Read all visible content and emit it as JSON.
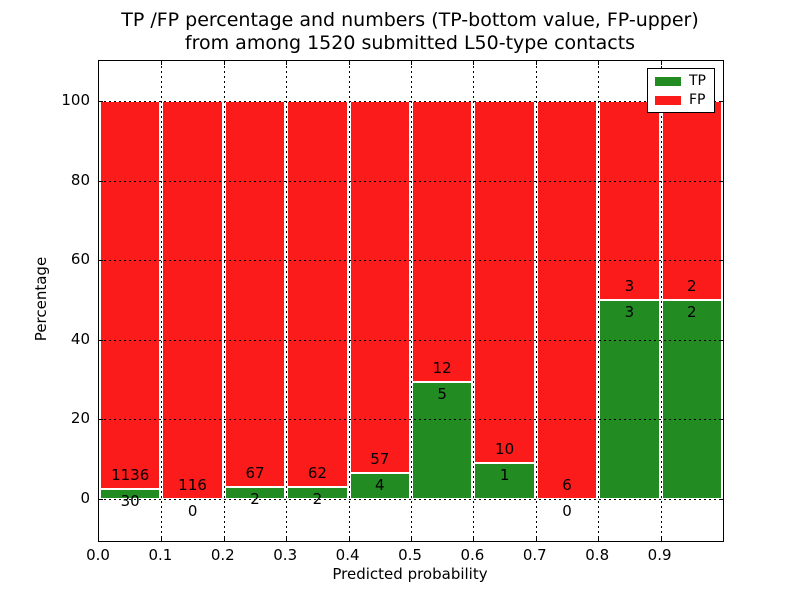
{
  "figure": {
    "title_line1": "TP /FP percentage and numbers (TP-bottom value, FP-upper)",
    "title_line2": "from among 1520 submitted L50-type contacts",
    "xlabel": "Predicted probability",
    "ylabel": "Percentage"
  },
  "legend": {
    "position": "upper right",
    "entries": [
      {
        "label": "TP",
        "color": "#228b22"
      },
      {
        "label": "FP",
        "color": "#fb1b1b"
      }
    ]
  },
  "chart_data": {
    "type": "bar",
    "stacked": true,
    "normalized_to_percent": true,
    "title": "TP /FP percentage and numbers (TP-bottom value, FP-upper) from among 1520 submitted L50-type contacts",
    "xlabel": "Predicted probability",
    "ylabel": "Percentage",
    "total_submitted_contacts": 1520,
    "bin_edges": [
      0.0,
      0.1,
      0.2,
      0.3,
      0.4,
      0.5,
      0.6,
      0.7,
      0.8,
      0.9,
      1.0
    ],
    "series": [
      {
        "name": "TP",
        "color": "#228b22",
        "counts": [
          30,
          0,
          2,
          2,
          4,
          5,
          1,
          0,
          3,
          2
        ]
      },
      {
        "name": "FP",
        "color": "#fb1b1b",
        "counts": [
          1136,
          116,
          67,
          62,
          57,
          12,
          10,
          6,
          3,
          2
        ]
      }
    ],
    "bar_label_rule": "FP count above TP/FP boundary, TP count below it",
    "xticks": [
      "0.0",
      "0.1",
      "0.2",
      "0.3",
      "0.4",
      "0.5",
      "0.6",
      "0.7",
      "0.8",
      "0.9"
    ],
    "yticks": [
      0,
      20,
      40,
      60,
      80,
      100
    ],
    "xlim": [
      0.0,
      1.0
    ],
    "ylim": [
      -10.5,
      110
    ],
    "grid": "dotted",
    "bar_edge_color": "#ffffff",
    "legend_position": "upper right"
  }
}
